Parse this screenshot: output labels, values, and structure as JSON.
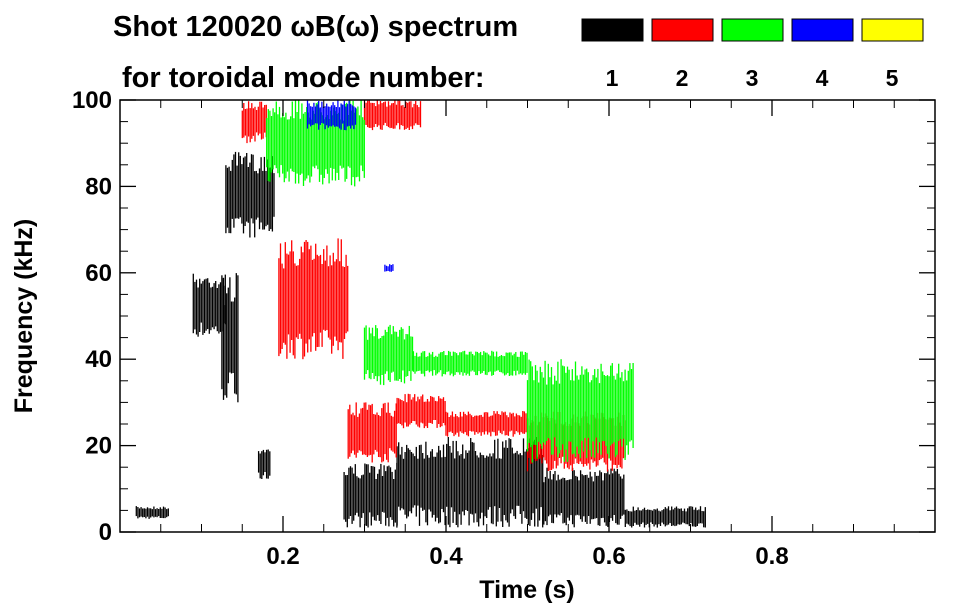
{
  "chart_data": {
    "type": "heatmap",
    "title": "Shot 120020 ωB(ω) spectrum",
    "subtitle": "for toroidal mode number:",
    "xlabel": "Time (s)",
    "ylabel": "Frequency (kHz)",
    "xlim": [
      0.0,
      1.0
    ],
    "ylim": [
      0,
      100
    ],
    "x_ticks": [
      0.2,
      0.4,
      0.6,
      0.8
    ],
    "x_tick_labels": [
      "0.2",
      "0.4",
      "0.6",
      "0.8"
    ],
    "y_ticks": [
      0,
      20,
      40,
      60,
      80,
      100
    ],
    "y_tick_labels": [
      "0",
      "20",
      "40",
      "60",
      "80",
      "100"
    ],
    "legend": {
      "placement": "top-right",
      "entries": [
        {
          "label": "1",
          "color": "#000000"
        },
        {
          "label": "2",
          "color": "#ff0000"
        },
        {
          "label": "3",
          "color": "#00ff00"
        },
        {
          "label": "4",
          "color": "#0000ff"
        },
        {
          "label": "5",
          "color": "#ffff00"
        }
      ]
    },
    "series": [
      {
        "name": "n=1",
        "color": "#000000",
        "segments": [
          {
            "t0": 0.02,
            "t1": 0.06,
            "f0": 3,
            "f1": 6
          },
          {
            "t0": 0.09,
            "t1": 0.13,
            "f0": 45,
            "f1": 60
          },
          {
            "t0": 0.125,
            "t1": 0.145,
            "f0": 30,
            "f1": 60
          },
          {
            "t0": 0.13,
            "t1": 0.19,
            "f0": 68,
            "f1": 88
          },
          {
            "t0": 0.17,
            "t1": 0.185,
            "f0": 12,
            "f1": 20
          },
          {
            "t0": 0.275,
            "t1": 0.34,
            "f0": 1,
            "f1": 16
          },
          {
            "t0": 0.34,
            "t1": 0.52,
            "f0": 1,
            "f1": 22
          },
          {
            "t0": 0.52,
            "t1": 0.62,
            "f0": 1,
            "f1": 15
          },
          {
            "t0": 0.62,
            "t1": 0.72,
            "f0": 1,
            "f1": 6
          }
        ]
      },
      {
        "name": "n=2",
        "color": "#ff0000",
        "segments": [
          {
            "t0": 0.15,
            "t1": 0.18,
            "f0": 90,
            "f1": 100
          },
          {
            "t0": 0.195,
            "t1": 0.28,
            "f0": 40,
            "f1": 68
          },
          {
            "t0": 0.3,
            "t1": 0.37,
            "f0": 93,
            "f1": 100
          },
          {
            "t0": 0.28,
            "t1": 0.34,
            "f0": 16,
            "f1": 30
          },
          {
            "t0": 0.34,
            "t1": 0.4,
            "f0": 24,
            "f1": 32
          },
          {
            "t0": 0.4,
            "t1": 0.5,
            "f0": 22,
            "f1": 28
          },
          {
            "t0": 0.5,
            "t1": 0.62,
            "f0": 14,
            "f1": 28
          }
        ]
      },
      {
        "name": "n=3",
        "color": "#00ff00",
        "segments": [
          {
            "t0": 0.18,
            "t1": 0.3,
            "f0": 80,
            "f1": 100
          },
          {
            "t0": 0.3,
            "t1": 0.36,
            "f0": 34,
            "f1": 48
          },
          {
            "t0": 0.36,
            "t1": 0.5,
            "f0": 36,
            "f1": 42
          },
          {
            "t0": 0.5,
            "t1": 0.63,
            "f0": 16,
            "f1": 40
          }
        ]
      },
      {
        "name": "n=4",
        "color": "#0000ff",
        "segments": [
          {
            "t0": 0.23,
            "t1": 0.29,
            "f0": 93,
            "f1": 100
          },
          {
            "t0": 0.325,
            "t1": 0.335,
            "f0": 60,
            "f1": 62
          }
        ]
      }
    ]
  }
}
